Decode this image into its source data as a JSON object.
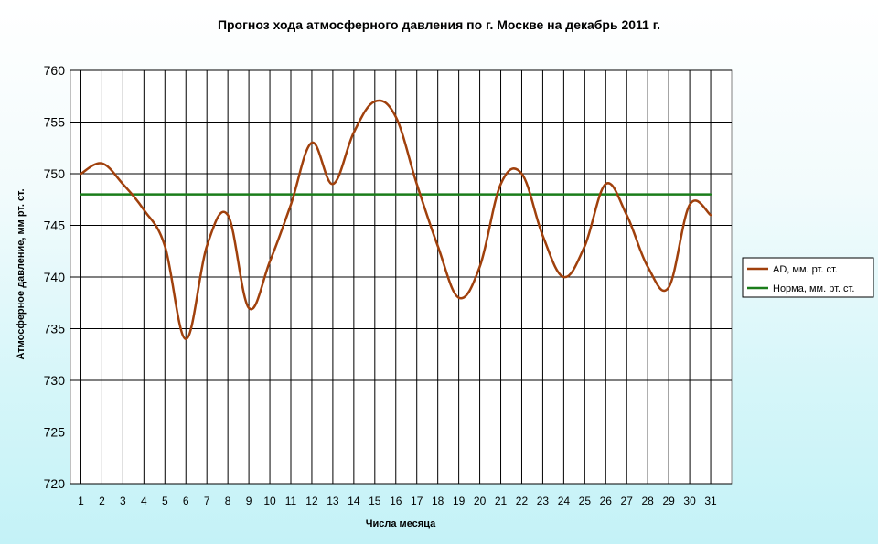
{
  "chart_data": {
    "type": "line",
    "title": "Прогноз хода атмосферного давления по г. Москве на декабрь 2011 г.",
    "xlabel": "Числа месяца",
    "ylabel": "Атмосферное давление, мм рт. ст.",
    "categories": [
      "1",
      "2",
      "3",
      "4",
      "5",
      "6",
      "7",
      "8",
      "9",
      "10",
      "11",
      "12",
      "13",
      "14",
      "15",
      "16",
      "17",
      "18",
      "19",
      "20",
      "21",
      "22",
      "23",
      "24",
      "25",
      "26",
      "27",
      "28",
      "29",
      "30",
      "31"
    ],
    "ylim": [
      720,
      760
    ],
    "yticks": [
      "720",
      "725",
      "730",
      "735",
      "740",
      "745",
      "750",
      "755",
      "760"
    ],
    "grid": true,
    "legend_position": "right",
    "series": [
      {
        "name": "AD, мм. рт. ст.",
        "color": "#a0400c",
        "values": [
          750,
          751,
          749,
          746.5,
          743,
          734,
          743,
          746,
          737,
          741.5,
          747,
          753,
          749,
          754,
          757,
          755.5,
          749,
          743,
          738,
          741,
          749,
          750,
          744,
          740,
          743,
          749,
          746,
          741,
          739,
          747,
          746
        ]
      },
      {
        "name": "Норма, мм. рт. ст.",
        "color": "#1a7d1a",
        "values": [
          748,
          748,
          748,
          748,
          748,
          748,
          748,
          748,
          748,
          748,
          748,
          748,
          748,
          748,
          748,
          748,
          748,
          748,
          748,
          748,
          748,
          748,
          748,
          748,
          748,
          748,
          748,
          748,
          748,
          748,
          748
        ]
      }
    ]
  }
}
